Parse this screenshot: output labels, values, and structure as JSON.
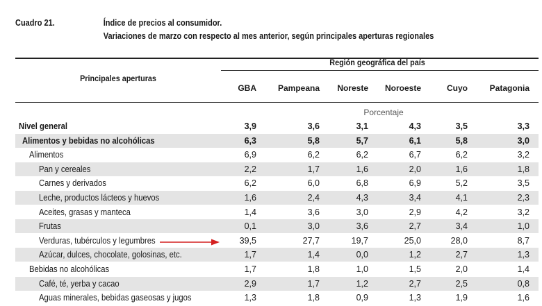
{
  "caption": {
    "number": "Cuadro 21.",
    "title_line1": "Índice de precios al consumidor.",
    "title_line2": "Variaciones de marzo con respecto al mes anterior, según principales aperturas regionales"
  },
  "header": {
    "row_header": "Principales aperturas",
    "group_header": "Región geográfica del país",
    "columns": [
      "GBA",
      "Pampeana",
      "Noreste",
      "Noroeste",
      "Cuyo",
      "Patagonia"
    ],
    "unit_label": "Porcentaje"
  },
  "rows": [
    {
      "label": "Nivel general",
      "values": [
        "3,9",
        "3,6",
        "3,1",
        "4,3",
        "3,5",
        "3,3"
      ]
    },
    {
      "label": "Alimentos y bebidas no alcohólicas",
      "values": [
        "6,3",
        "5,8",
        "5,7",
        "6,1",
        "5,8",
        "3,0"
      ]
    },
    {
      "label": "Alimentos",
      "values": [
        "6,9",
        "6,2",
        "6,2",
        "6,7",
        "6,2",
        "3,2"
      ]
    },
    {
      "label": "Pan y cereales",
      "values": [
        "2,2",
        "1,7",
        "1,6",
        "2,0",
        "1,6",
        "1,8"
      ]
    },
    {
      "label": "Carnes y derivados",
      "values": [
        "6,2",
        "6,0",
        "6,8",
        "6,9",
        "5,2",
        "3,5"
      ]
    },
    {
      "label": "Leche, productos lácteos y huevos",
      "values": [
        "1,6",
        "2,4",
        "4,3",
        "3,4",
        "4,1",
        "2,3"
      ]
    },
    {
      "label": "Aceites, grasas y manteca",
      "values": [
        "1,4",
        "3,6",
        "3,0",
        "2,9",
        "4,2",
        "3,2"
      ]
    },
    {
      "label": "Frutas",
      "values": [
        "0,1",
        "3,0",
        "3,6",
        "2,7",
        "3,4",
        "1,0"
      ]
    },
    {
      "label": "Verduras, tubérculos y legumbres",
      "values": [
        "39,5",
        "27,7",
        "19,7",
        "25,0",
        "28,0",
        "8,7"
      ]
    },
    {
      "label": "Azúcar, dulces, chocolate, golosinas, etc.",
      "values": [
        "1,7",
        "1,4",
        "0,0",
        "1,2",
        "2,7",
        "1,3"
      ]
    },
    {
      "label": "Bebidas no alcohólicas",
      "values": [
        "1,7",
        "1,8",
        "1,0",
        "1,5",
        "2,0",
        "1,4"
      ]
    },
    {
      "label": "Café, té, yerba y cacao",
      "values": [
        "2,9",
        "1,7",
        "1,2",
        "2,7",
        "2,5",
        "0,8"
      ]
    },
    {
      "label": "Aguas minerales, bebidas gaseosas y jugos",
      "values": [
        "1,3",
        "1,8",
        "0,9",
        "1,3",
        "1,9",
        "1,6"
      ]
    }
  ],
  "colors": {
    "shade": "#e4e4e4",
    "arrow": "#d42020",
    "rule": "#222222"
  }
}
